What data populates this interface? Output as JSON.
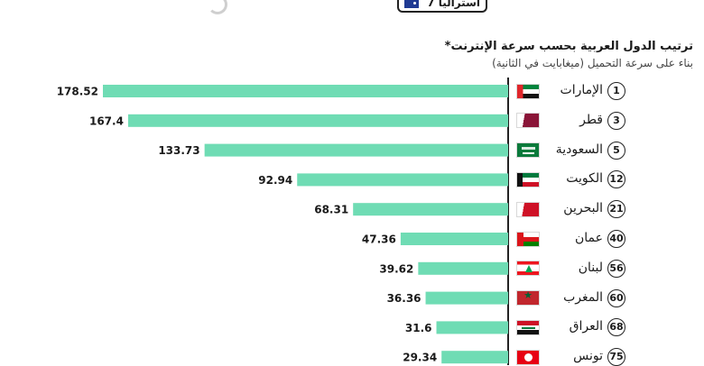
{
  "header": {
    "legend_text": "أستراليا 7"
  },
  "chart_title": "ترتيب الدول العربية بحسب سرعة الإنترنت*",
  "chart_subtitle": "بناء على سرعة التحميل (ميغابايت في الثانية)",
  "colors": {
    "bar": "#6fdcb4",
    "axis": "#222222"
  },
  "chart_data": {
    "type": "bar",
    "orientation": "horizontal",
    "title": "ترتيب الدول العربية بحسب سرعة الإنترنت*",
    "subtitle": "بناء على سرعة التحميل (ميغابايت في الثانية)",
    "categories": [
      "الإمارات",
      "قطر",
      "السعودية",
      "الكويت",
      "البحرين",
      "عمان",
      "لبنان",
      "المغرب",
      "العراق",
      "تونس"
    ],
    "ranks": [
      "1",
      "3",
      "5",
      "12",
      "21",
      "40",
      "56",
      "60",
      "68",
      "75"
    ],
    "values": [
      178.52,
      167.4,
      133.73,
      92.94,
      68.31,
      47.36,
      39.62,
      36.36,
      31.6,
      29.34
    ],
    "value_labels": [
      "178.52",
      "167.4",
      "133.73",
      "92.94",
      "68.31",
      "47.36",
      "39.62",
      "36.36",
      "31.6",
      "29.34"
    ],
    "flags": [
      "uae-flag-icon",
      "qatar-flag-icon",
      "saudi-flag-icon",
      "kuwait-flag-icon",
      "bahrain-flag-icon",
      "oman-flag-icon",
      "lebanon-flag-icon",
      "morocco-flag-icon",
      "iraq-flag-icon",
      "tunisia-flag-icon"
    ],
    "xlim": [
      0,
      178.52
    ],
    "bars_grow": "right-to-left",
    "grid": false,
    "legend": "none"
  }
}
